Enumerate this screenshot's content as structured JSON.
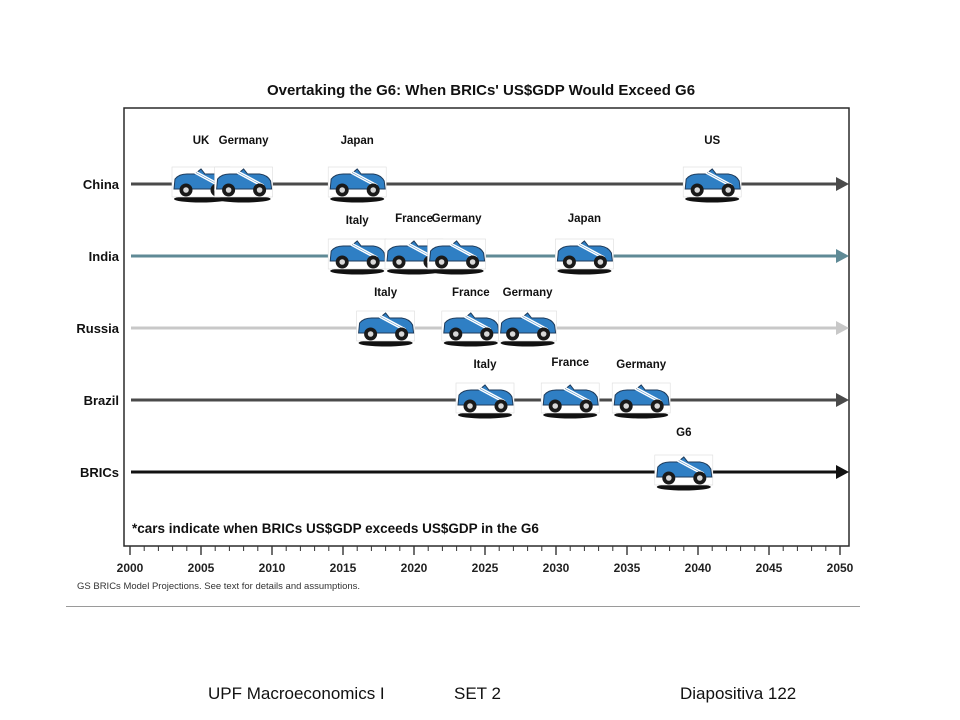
{
  "slide": {
    "footer_left": "UPF Macroeconomics I",
    "footer_center": "SET 2",
    "footer_right": "Diapositiva 122"
  },
  "chart_data": {
    "type": "timeline",
    "title": "Overtaking the G6: When BRICs' US$GDP Would Exceed G6",
    "note": "*cars indicate when BRICs US$GDP exceeds US$GDP in the G6",
    "source": "GS BRICs Model Projections. See text for details and assumptions.",
    "xlim": [
      2000,
      2050
    ],
    "x_ticks": [
      2000,
      2005,
      2010,
      2015,
      2020,
      2025,
      2030,
      2035,
      2040,
      2045,
      2050
    ],
    "icon": "car-icon",
    "colors": {
      "car_body": "#2f7fc4",
      "car_outline": "#1d3a5a",
      "china_line": "#4a4a4a",
      "india_line": "#5f8a96",
      "russia_line": "#c8c8c8",
      "brazil_line": "#4a4a4a",
      "brics_line": "#111111"
    },
    "series": [
      {
        "name": "China",
        "events": [
          {
            "label": "UK",
            "year": 2005
          },
          {
            "label": "Germany",
            "year": 2008
          },
          {
            "label": "Japan",
            "year": 2016
          },
          {
            "label": "US",
            "year": 2041
          }
        ]
      },
      {
        "name": "India",
        "events": [
          {
            "label": "Italy",
            "year": 2016
          },
          {
            "label": "France",
            "year": 2020
          },
          {
            "label": "Germany",
            "year": 2023
          },
          {
            "label": "Japan",
            "year": 2032
          }
        ]
      },
      {
        "name": "Russia",
        "events": [
          {
            "label": "Italy",
            "year": 2018
          },
          {
            "label": "France",
            "year": 2024
          },
          {
            "label": "Germany",
            "year": 2028
          }
        ]
      },
      {
        "name": "Brazil",
        "events": [
          {
            "label": "Italy",
            "year": 2025
          },
          {
            "label": "France",
            "year": 2031
          },
          {
            "label": "Germany",
            "year": 2036
          }
        ]
      },
      {
        "name": "BRICs",
        "events": [
          {
            "label": "G6",
            "year": 2039
          }
        ]
      }
    ]
  }
}
